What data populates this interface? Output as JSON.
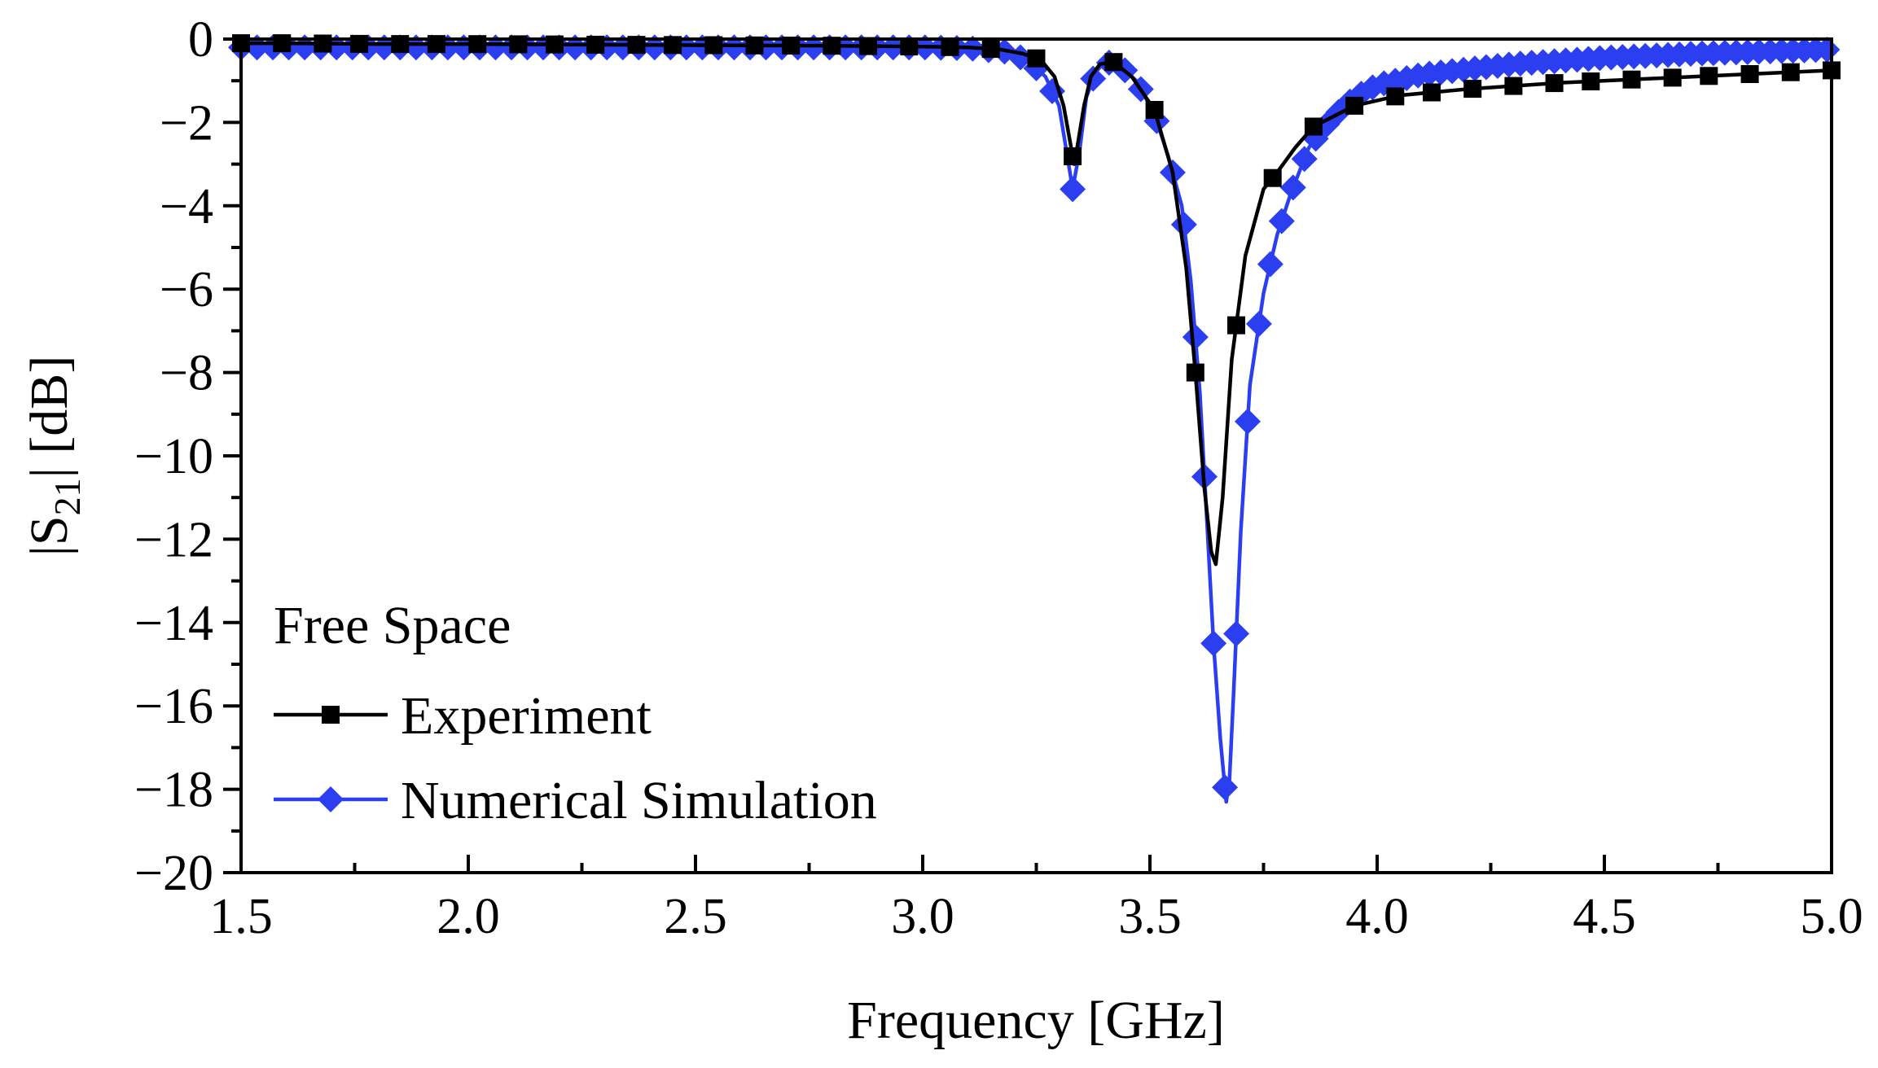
{
  "chart_data": {
    "type": "line",
    "title": "",
    "xlabel": "Frequency [GHz]",
    "ylabel": "|S21| [dB]",
    "ylabel_parts": {
      "prefix": "|S",
      "sub": "21",
      "suffix": "| [dB]"
    },
    "xlim": [
      1.5,
      5.0
    ],
    "ylim": [
      -20,
      0
    ],
    "xticks": [
      1.5,
      2.0,
      2.5,
      3.0,
      3.5,
      4.0,
      4.5,
      5.0
    ],
    "xtick_labels": [
      "1.5",
      "2.0",
      "2.5",
      "3.0",
      "3.5",
      "4.0",
      "4.5",
      "5.0"
    ],
    "yticks": [
      0,
      -2,
      -4,
      -6,
      -8,
      -10,
      -12,
      -14,
      -16,
      -18,
      -20
    ],
    "ytick_labels": [
      "0",
      "−2",
      "−4",
      "−6",
      "−8",
      "−10",
      "−12",
      "−14",
      "−16",
      "−18",
      "−20"
    ],
    "grid": false,
    "legend": {
      "position": "bottom-left",
      "title": "Free Space",
      "entries": [
        "Experiment",
        "Numerical Simulation"
      ]
    },
    "series": [
      {
        "name": "Experiment",
        "color": "#000000",
        "marker": "square",
        "x": [
          1.5,
          1.6,
          1.8,
          2.0,
          2.2,
          2.4,
          2.6,
          2.8,
          3.0,
          3.1,
          3.17,
          3.22,
          3.26,
          3.29,
          3.31,
          3.325,
          3.333,
          3.34,
          3.355,
          3.37,
          3.39,
          3.42,
          3.46,
          3.51,
          3.55,
          3.58,
          3.6,
          3.62,
          3.635,
          3.645,
          3.66,
          3.68,
          3.71,
          3.75,
          3.78,
          3.82,
          3.86,
          3.95,
          4.05,
          4.2,
          4.4,
          4.6,
          4.8,
          5.0
        ],
        "y": [
          -0.1,
          -0.1,
          -0.12,
          -0.12,
          -0.13,
          -0.14,
          -0.15,
          -0.16,
          -0.18,
          -0.2,
          -0.25,
          -0.35,
          -0.5,
          -0.9,
          -1.6,
          -2.5,
          -3.0,
          -2.6,
          -1.6,
          -0.9,
          -0.6,
          -0.55,
          -0.9,
          -1.7,
          -3.2,
          -5.5,
          -8.0,
          -10.8,
          -12.3,
          -12.6,
          -11.0,
          -7.7,
          -5.2,
          -3.6,
          -3.2,
          -2.6,
          -2.1,
          -1.6,
          -1.35,
          -1.2,
          -1.05,
          -0.95,
          -0.85,
          -0.75
        ],
        "marker_x": [
          1.5,
          1.59,
          1.68,
          1.76,
          1.85,
          1.93,
          2.02,
          2.11,
          2.19,
          2.28,
          2.37,
          2.45,
          2.54,
          2.63,
          2.71,
          2.8,
          2.88,
          2.97,
          3.06,
          3.15,
          3.25,
          3.33,
          3.42,
          3.51,
          3.6,
          3.69,
          3.77,
          3.86,
          3.95,
          4.04,
          4.12,
          4.21,
          4.3,
          4.39,
          4.47,
          4.56,
          4.65,
          4.73,
          4.82,
          4.91,
          5.0
        ]
      },
      {
        "name": "Numerical Simulation",
        "color": "#2b3ff0",
        "marker": "diamond",
        "x": [
          1.5,
          1.6,
          1.8,
          2.0,
          2.2,
          2.4,
          2.6,
          2.8,
          3.0,
          3.1,
          3.18,
          3.23,
          3.27,
          3.3,
          3.315,
          3.33,
          3.345,
          3.36,
          3.38,
          3.4,
          3.43,
          3.47,
          3.51,
          3.54,
          3.57,
          3.59,
          3.61,
          3.625,
          3.64,
          3.655,
          3.668,
          3.675,
          3.685,
          3.7,
          3.72,
          3.75,
          3.78,
          3.81,
          3.85,
          3.9,
          3.95,
          4.0,
          4.1,
          4.3,
          4.5,
          4.7,
          5.0
        ],
        "y": [
          -0.2,
          -0.2,
          -0.2,
          -0.2,
          -0.2,
          -0.2,
          -0.2,
          -0.2,
          -0.2,
          -0.22,
          -0.3,
          -0.5,
          -0.9,
          -1.6,
          -2.6,
          -3.6,
          -2.7,
          -1.4,
          -0.8,
          -0.55,
          -0.6,
          -1.0,
          -1.8,
          -2.8,
          -4.0,
          -5.8,
          -8.5,
          -11.5,
          -14.5,
          -16.8,
          -18.3,
          -17.8,
          -15.5,
          -11.8,
          -8.3,
          -6.1,
          -4.7,
          -3.7,
          -2.6,
          -1.9,
          -1.4,
          -1.1,
          -0.85,
          -0.6,
          -0.45,
          -0.35,
          -0.25
        ],
        "marker_x": [
          1.5,
          1.535,
          1.57,
          1.605,
          1.64,
          1.675,
          1.71,
          1.745,
          1.78,
          1.815,
          1.85,
          1.885,
          1.92,
          1.955,
          1.99,
          2.025,
          2.06,
          2.095,
          2.13,
          2.165,
          2.2,
          2.235,
          2.27,
          2.305,
          2.34,
          2.375,
          2.41,
          2.445,
          2.48,
          2.515,
          2.55,
          2.585,
          2.62,
          2.655,
          2.69,
          2.725,
          2.76,
          2.795,
          2.83,
          2.865,
          2.9,
          2.935,
          2.97,
          3.005,
          3.04,
          3.075,
          3.11,
          3.145,
          3.18,
          3.215,
          3.25,
          3.285,
          3.33,
          3.375,
          3.41,
          3.445,
          3.48,
          3.515,
          3.55,
          3.575,
          3.6,
          3.62,
          3.64,
          3.665,
          3.69,
          3.715,
          3.74,
          3.765,
          3.79,
          3.815,
          3.84,
          3.865,
          3.89,
          3.915,
          3.94,
          3.965,
          3.99,
          4.015,
          4.04,
          4.065,
          4.09,
          4.115,
          4.14,
          4.165,
          4.19,
          4.215,
          4.24,
          4.265,
          4.29,
          4.315,
          4.34,
          4.365,
          4.39,
          4.415,
          4.44,
          4.465,
          4.49,
          4.515,
          4.54,
          4.565,
          4.59,
          4.615,
          4.64,
          4.665,
          4.69,
          4.715,
          4.74,
          4.765,
          4.79,
          4.815,
          4.84,
          4.865,
          4.89,
          4.915,
          4.94,
          4.965,
          4.99
        ]
      }
    ]
  }
}
